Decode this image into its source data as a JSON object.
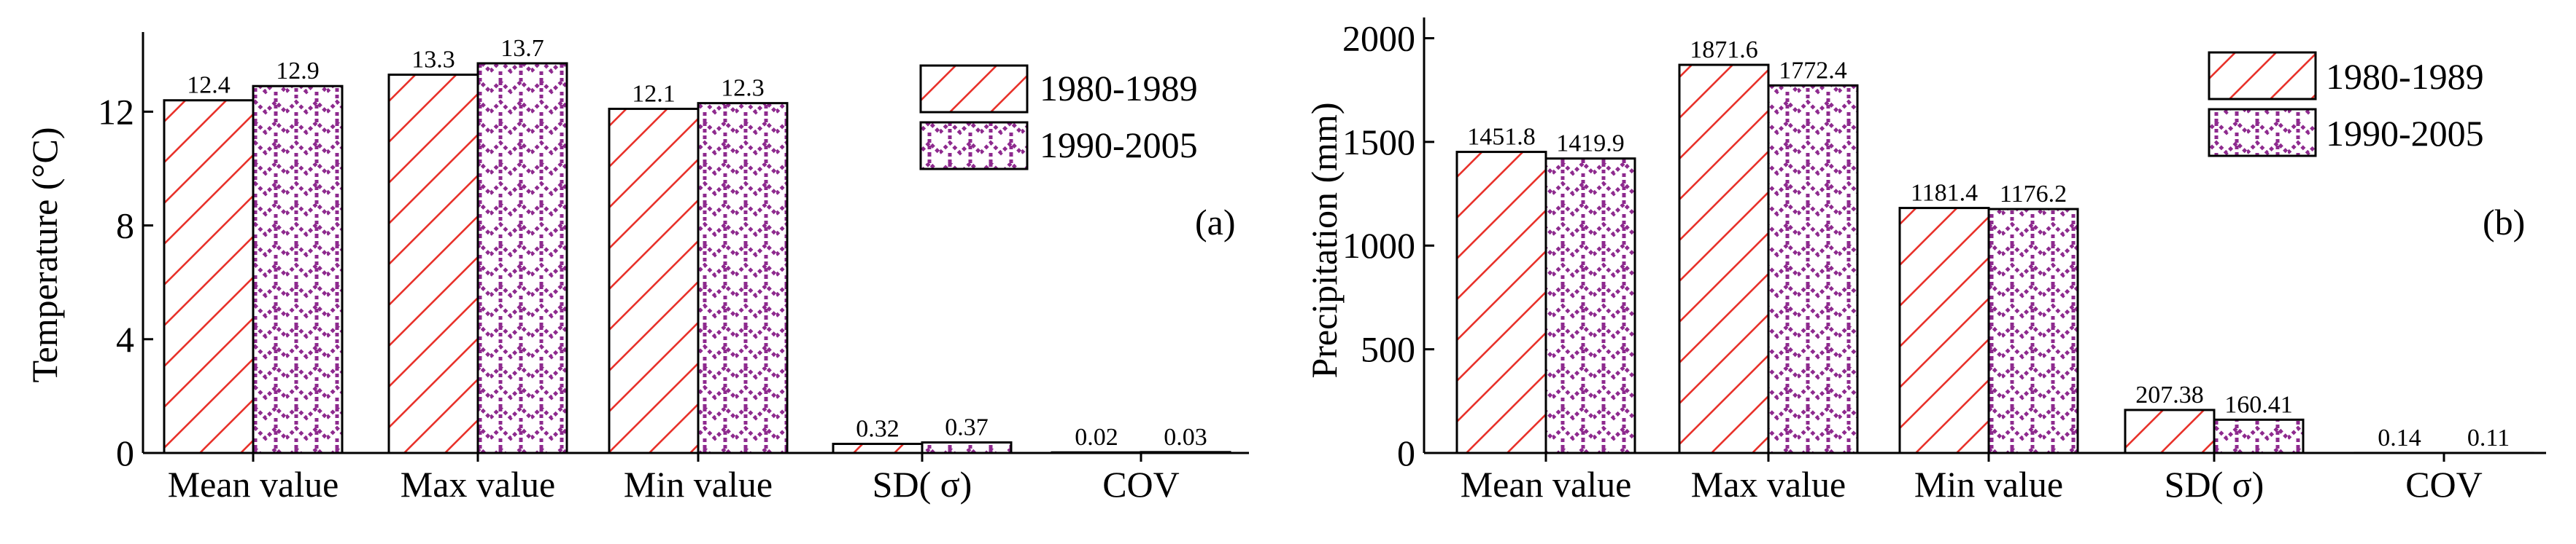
{
  "chart_data": [
    {
      "type": "bar",
      "panel_label": "(a)",
      "ylabel": "Temperature (°C)",
      "xlabel": "",
      "categories": [
        "Mean value",
        "Max value",
        "Min value",
        "SD( σ)",
        "COV"
      ],
      "yticks": [
        0,
        4,
        8,
        12
      ],
      "ylim": [
        0,
        14.8
      ],
      "series": [
        {
          "name": "1980-1989",
          "values": [
            12.4,
            13.3,
            12.1,
            0.32,
            0.02
          ],
          "labels": [
            "12.4",
            "13.3",
            "12.1",
            "0.32",
            "0.02"
          ]
        },
        {
          "name": "1990-2005",
          "values": [
            12.9,
            13.7,
            12.3,
            0.37,
            0.03
          ],
          "labels": [
            "12.9",
            "13.7",
            "12.3",
            "0.37",
            "0.03"
          ]
        }
      ],
      "legend_position": "top-right"
    },
    {
      "type": "bar",
      "panel_label": "(b)",
      "ylabel": "Precipitation (mm)",
      "xlabel": "",
      "categories": [
        "Mean value",
        "Max value",
        "Min value",
        "SD( σ)",
        "COV"
      ],
      "yticks": [
        0,
        500,
        1000,
        1500,
        2000
      ],
      "ylim": [
        0,
        2100
      ],
      "series": [
        {
          "name": "1980-1989",
          "values": [
            1451.8,
            1871.6,
            1181.4,
            207.38,
            0.14
          ],
          "labels": [
            "1451.8",
            "1871.6",
            "1181.4",
            "207.38",
            "0.14"
          ]
        },
        {
          "name": "1990-2005",
          "values": [
            1419.9,
            1772.4,
            1176.2,
            160.41,
            0.11
          ],
          "labels": [
            "1419.9",
            "1772.4",
            "1176.2",
            "160.41",
            "0.11"
          ]
        }
      ],
      "legend_position": "top-right"
    }
  ],
  "colors": {
    "series1_hatch": "#e8322b",
    "series2_hatch": "#8e2a8e",
    "axis": "#000000"
  }
}
